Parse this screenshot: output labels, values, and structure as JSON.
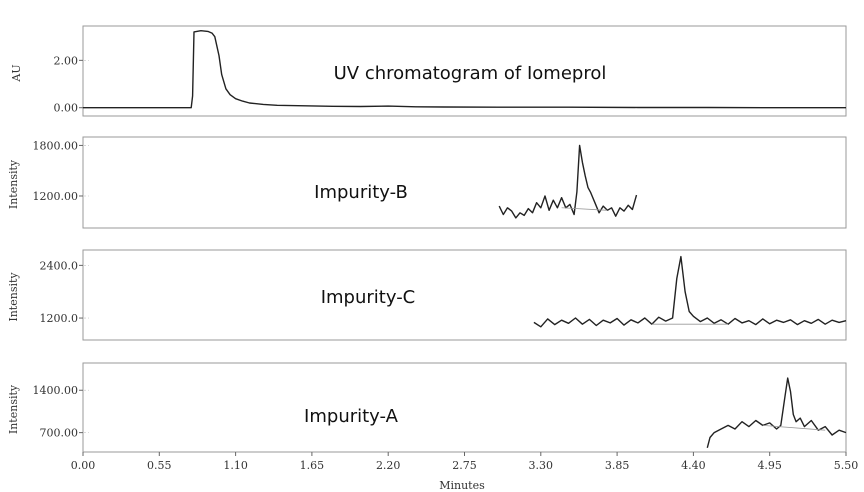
{
  "chart_data": [
    {
      "type": "line",
      "title": "UV chromatogram of Iomeprol",
      "ylabel": "AU",
      "xlabel": "Minutes",
      "xlim": [
        0.0,
        5.5
      ],
      "ylim": [
        -0.35,
        3.45
      ],
      "yticks": [
        "0.00",
        "2.00"
      ],
      "ytick_values": [
        0,
        2
      ],
      "series": [
        {
          "x": [
            0.0,
            0.5,
            0.78,
            0.79,
            0.8,
            0.85,
            0.9,
            0.93,
            0.95,
            0.98,
            1.0,
            1.03,
            1.06,
            1.1,
            1.15,
            1.2,
            1.3,
            1.4,
            1.6,
            1.8,
            2.0,
            2.2,
            2.4,
            2.6,
            3.0,
            3.5,
            4.0,
            4.5,
            5.0,
            5.5
          ],
          "y": [
            0.0,
            0.0,
            0.0,
            0.5,
            3.2,
            3.25,
            3.22,
            3.15,
            3.0,
            2.2,
            1.4,
            0.8,
            0.55,
            0.38,
            0.28,
            0.2,
            0.14,
            0.1,
            0.08,
            0.06,
            0.05,
            0.07,
            0.04,
            0.03,
            0.02,
            0.02,
            0.01,
            0.01,
            0.0,
            0.0
          ]
        }
      ]
    },
    {
      "type": "line",
      "title": "Impurity-B",
      "ylabel": "Intensity",
      "xlim": [
        0.0,
        5.5
      ],
      "ylim": [
        820,
        1900
      ],
      "yticks": [
        "1200.00",
        "1800.00"
      ],
      "ytick_values": [
        1200,
        1800
      ],
      "series": [
        {
          "x": [
            3.0,
            3.03,
            3.06,
            3.09,
            3.12,
            3.15,
            3.18,
            3.21,
            3.24,
            3.27,
            3.3,
            3.33,
            3.36,
            3.39,
            3.42,
            3.45,
            3.48,
            3.51,
            3.54,
            3.56,
            3.58,
            3.6,
            3.62,
            3.64,
            3.66,
            3.69,
            3.72,
            3.75,
            3.78,
            3.81,
            3.84,
            3.87,
            3.9,
            3.93,
            3.96,
            3.99
          ],
          "y": [
            1080,
            980,
            1060,
            1020,
            940,
            1000,
            970,
            1050,
            1000,
            1120,
            1060,
            1200,
            1030,
            1150,
            1060,
            1180,
            1060,
            1100,
            980,
            1250,
            1800,
            1600,
            1440,
            1300,
            1240,
            1120,
            1000,
            1080,
            1030,
            1060,
            960,
            1060,
            1020,
            1090,
            1040,
            1210
          ]
        }
      ]
    },
    {
      "type": "line",
      "title": "Impurity-C",
      "ylabel": "Intensity",
      "xlim": [
        0.0,
        5.5
      ],
      "ylim": [
        700,
        2750
      ],
      "yticks": [
        "1200.0",
        "2400.0"
      ],
      "ytick_values": [
        1200,
        2400
      ],
      "series": [
        {
          "x": [
            3.25,
            3.3,
            3.35,
            3.4,
            3.45,
            3.5,
            3.55,
            3.6,
            3.65,
            3.7,
            3.75,
            3.8,
            3.85,
            3.9,
            3.95,
            4.0,
            4.05,
            4.1,
            4.15,
            4.2,
            4.25,
            4.28,
            4.31,
            4.34,
            4.37,
            4.4,
            4.45,
            4.5,
            4.55,
            4.6,
            4.65,
            4.7,
            4.75,
            4.8,
            4.85,
            4.9,
            4.95,
            5.0,
            5.05,
            5.1,
            5.15,
            5.2,
            5.25,
            5.3,
            5.35,
            5.4,
            5.45,
            5.5
          ],
          "y": [
            1100,
            1000,
            1180,
            1050,
            1150,
            1080,
            1200,
            1060,
            1170,
            1030,
            1150,
            1090,
            1190,
            1040,
            1160,
            1090,
            1200,
            1060,
            1220,
            1130,
            1200,
            2100,
            2600,
            1800,
            1350,
            1240,
            1120,
            1200,
            1080,
            1160,
            1060,
            1190,
            1090,
            1140,
            1050,
            1180,
            1070,
            1150,
            1100,
            1160,
            1050,
            1140,
            1080,
            1170,
            1060,
            1150,
            1100,
            1140
          ]
        }
      ]
    },
    {
      "type": "line",
      "title": "Impurity-A",
      "ylabel": "Intensity",
      "xlim": [
        0.0,
        5.5
      ],
      "ylim": [
        380,
        1850
      ],
      "yticks": [
        "700.00",
        "1400.00"
      ],
      "ytick_values": [
        700,
        1400
      ],
      "series": [
        {
          "x": [
            4.5,
            4.52,
            4.55,
            4.6,
            4.65,
            4.7,
            4.75,
            4.8,
            4.85,
            4.9,
            4.95,
            5.0,
            5.03,
            5.06,
            5.08,
            5.1,
            5.12,
            5.14,
            5.17,
            5.2,
            5.25,
            5.3,
            5.35,
            5.4,
            5.45,
            5.5
          ],
          "y": [
            450,
            620,
            700,
            760,
            820,
            760,
            880,
            800,
            900,
            820,
            860,
            760,
            820,
            1300,
            1600,
            1380,
            1000,
            880,
            940,
            800,
            900,
            740,
            800,
            660,
            740,
            700
          ]
        }
      ]
    }
  ]
}
